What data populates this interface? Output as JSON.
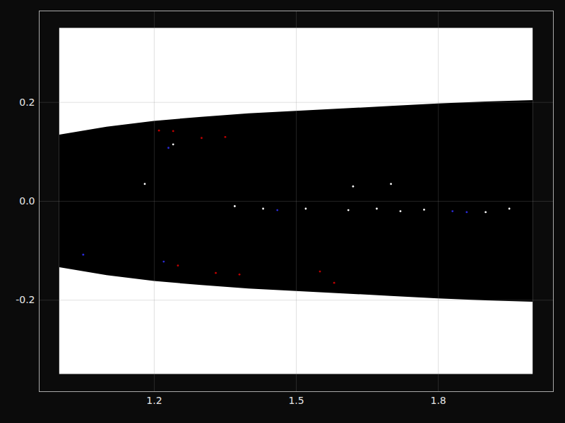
{
  "chart_data": {
    "type": "area",
    "color": "#000000",
    "x": [
      1.0,
      1.1,
      1.2,
      1.3,
      1.4,
      1.5,
      1.6,
      1.7,
      1.8,
      1.9,
      2.0
    ],
    "upper": [
      0.134,
      0.15,
      0.162,
      0.17,
      0.177,
      0.182,
      0.187,
      0.192,
      0.197,
      0.201,
      0.204
    ],
    "lower": [
      -0.134,
      -0.15,
      -0.162,
      -0.17,
      -0.177,
      -0.182,
      -0.187,
      -0.192,
      -0.197,
      -0.201,
      -0.204
    ],
    "image_y_range": [
      -0.35,
      0.35
    ],
    "points": [
      {
        "color": "#c00000",
        "x": [
          1.21,
          1.24,
          1.3,
          1.35,
          1.25,
          1.33,
          1.38,
          1.55,
          1.58
        ],
        "y": [
          0.143,
          0.142,
          0.128,
          0.13,
          -0.13,
          -0.145,
          -0.148,
          -0.142,
          -0.165
        ]
      },
      {
        "color": "#2a2ad8",
        "x": [
          1.23,
          1.05,
          1.22,
          1.46,
          1.83,
          1.86
        ],
        "y": [
          0.108,
          -0.108,
          -0.122,
          -0.018,
          -0.02,
          -0.022
        ]
      },
      {
        "color": "#ffffff",
        "x": [
          1.24,
          1.18,
          1.37,
          1.43,
          1.52,
          1.61,
          1.67,
          1.72,
          1.77,
          1.9,
          1.95,
          1.62,
          1.7
        ],
        "y": [
          0.115,
          0.035,
          -0.01,
          -0.015,
          -0.015,
          -0.018,
          -0.015,
          -0.02,
          -0.017,
          -0.022,
          -0.015,
          0.03,
          0.035
        ]
      }
    ],
    "xlim": [
      0.957,
      2.043
    ],
    "ylim": [
      -0.385,
      0.385
    ],
    "xticks": [
      1.2,
      1.5,
      1.8
    ],
    "yticks": [
      -0.2,
      {
        "value": 0,
        "label": "0.0"
      },
      0.2
    ],
    "grid": true
  }
}
